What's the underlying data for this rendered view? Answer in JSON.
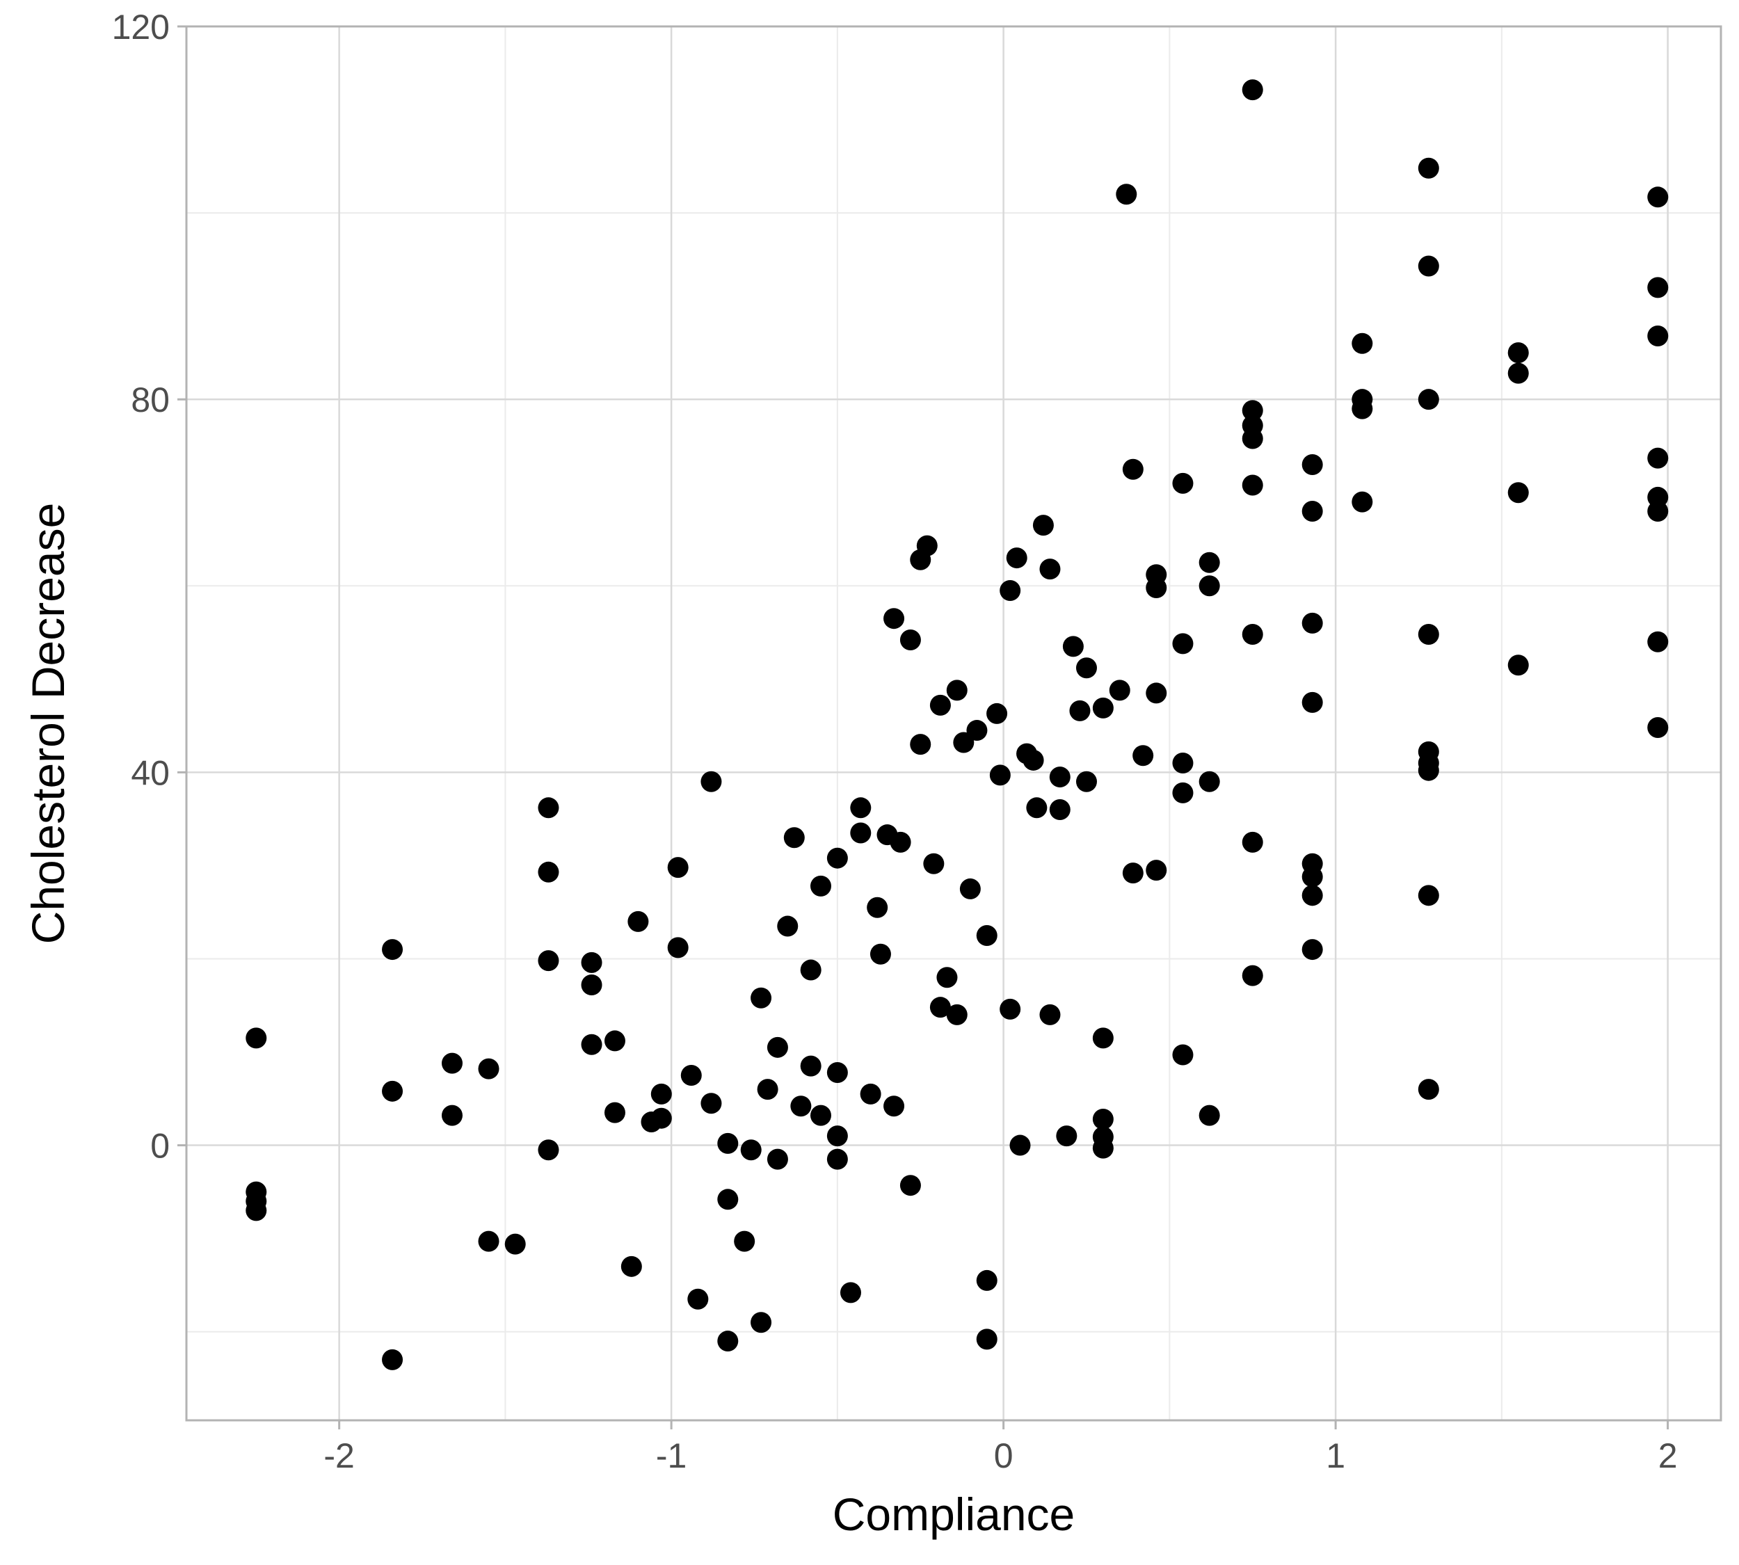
{
  "chart_data": {
    "type": "scatter",
    "title": "",
    "xlabel": "Compliance",
    "ylabel": "Cholesterol Decrease",
    "xlim": [
      -2.46,
      2.16
    ],
    "ylim": [
      -29.5,
      120
    ],
    "x_ticks": [
      -2,
      -1,
      0,
      1,
      2
    ],
    "x_tick_labels": [
      "-2",
      "-1",
      "0",
      "1",
      "2"
    ],
    "y_ticks": [
      0,
      40,
      80,
      120
    ],
    "y_tick_labels": [
      "0",
      "40",
      "80",
      "120"
    ],
    "grid": true,
    "legend": "none",
    "colors": {
      "points": "#000000",
      "grid_major": "#d9d9d9",
      "grid_minor": "#ebebeb",
      "panel_border": "#b3b3b3"
    },
    "points": [
      {
        "x": -2.25,
        "y": 11.5
      },
      {
        "x": -2.25,
        "y": -5.0
      },
      {
        "x": -2.25,
        "y": -6.0
      },
      {
        "x": -2.25,
        "y": -7.0
      },
      {
        "x": -1.84,
        "y": 21.0
      },
      {
        "x": -1.84,
        "y": 5.8
      },
      {
        "x": -1.84,
        "y": -23.0
      },
      {
        "x": -1.66,
        "y": 8.8
      },
      {
        "x": -1.66,
        "y": 3.2
      },
      {
        "x": -1.55,
        "y": 8.2
      },
      {
        "x": -1.55,
        "y": -10.3
      },
      {
        "x": -1.47,
        "y": -10.6
      },
      {
        "x": -1.37,
        "y": 36.2
      },
      {
        "x": -1.37,
        "y": 29.3
      },
      {
        "x": -1.37,
        "y": 19.8
      },
      {
        "x": -1.37,
        "y": -0.5
      },
      {
        "x": -1.24,
        "y": 19.6
      },
      {
        "x": -1.24,
        "y": 17.2
      },
      {
        "x": -1.24,
        "y": 10.8
      },
      {
        "x": -1.17,
        "y": 11.2
      },
      {
        "x": -1.17,
        "y": 3.5
      },
      {
        "x": -1.12,
        "y": -13.0
      },
      {
        "x": -1.1,
        "y": 24.0
      },
      {
        "x": -1.06,
        "y": 2.5
      },
      {
        "x": -1.03,
        "y": 5.5
      },
      {
        "x": -1.03,
        "y": 2.9
      },
      {
        "x": -0.98,
        "y": 29.8
      },
      {
        "x": -0.98,
        "y": 21.2
      },
      {
        "x": -0.94,
        "y": 7.5
      },
      {
        "x": -0.92,
        "y": -16.5
      },
      {
        "x": -0.88,
        "y": 39.0
      },
      {
        "x": -0.88,
        "y": 4.5
      },
      {
        "x": -0.83,
        "y": 0.2
      },
      {
        "x": -0.83,
        "y": -5.8
      },
      {
        "x": -0.83,
        "y": -21.0
      },
      {
        "x": -0.78,
        "y": -10.3
      },
      {
        "x": -0.76,
        "y": -0.5
      },
      {
        "x": -0.73,
        "y": 15.8
      },
      {
        "x": -0.73,
        "y": -19.0
      },
      {
        "x": -0.71,
        "y": 6.0
      },
      {
        "x": -0.68,
        "y": 10.5
      },
      {
        "x": -0.68,
        "y": -1.5
      },
      {
        "x": -0.65,
        "y": 23.5
      },
      {
        "x": -0.63,
        "y": 33.0
      },
      {
        "x": -0.61,
        "y": 4.2
      },
      {
        "x": -0.58,
        "y": 18.8
      },
      {
        "x": -0.58,
        "y": 8.5
      },
      {
        "x": -0.55,
        "y": 27.8
      },
      {
        "x": -0.55,
        "y": 3.2
      },
      {
        "x": -0.5,
        "y": 30.8
      },
      {
        "x": -0.5,
        "y": 7.8
      },
      {
        "x": -0.5,
        "y": 1.0
      },
      {
        "x": -0.5,
        "y": -1.5
      },
      {
        "x": -0.46,
        "y": -15.8
      },
      {
        "x": -0.43,
        "y": 36.2
      },
      {
        "x": -0.43,
        "y": 33.5
      },
      {
        "x": -0.4,
        "y": 5.5
      },
      {
        "x": -0.38,
        "y": 25.5
      },
      {
        "x": -0.37,
        "y": 20.5
      },
      {
        "x": -0.35,
        "y": 33.3
      },
      {
        "x": -0.33,
        "y": 56.5
      },
      {
        "x": -0.33,
        "y": 4.2
      },
      {
        "x": -0.31,
        "y": 32.5
      },
      {
        "x": -0.28,
        "y": 54.2
      },
      {
        "x": -0.28,
        "y": -4.3
      },
      {
        "x": -0.25,
        "y": 62.8
      },
      {
        "x": -0.25,
        "y": 43.0
      },
      {
        "x": -0.23,
        "y": 64.3
      },
      {
        "x": -0.21,
        "y": 30.2
      },
      {
        "x": -0.19,
        "y": 47.2
      },
      {
        "x": -0.19,
        "y": 14.8
      },
      {
        "x": -0.17,
        "y": 18.0
      },
      {
        "x": -0.14,
        "y": 48.8
      },
      {
        "x": -0.14,
        "y": 14.0
      },
      {
        "x": -0.12,
        "y": 43.2
      },
      {
        "x": -0.1,
        "y": 27.5
      },
      {
        "x": -0.08,
        "y": 44.5
      },
      {
        "x": -0.05,
        "y": 22.5
      },
      {
        "x": -0.05,
        "y": -14.5
      },
      {
        "x": -0.05,
        "y": -20.8
      },
      {
        "x": -0.02,
        "y": 46.3
      },
      {
        "x": -0.01,
        "y": 39.7
      },
      {
        "x": 0.02,
        "y": 59.5
      },
      {
        "x": 0.02,
        "y": 14.6
      },
      {
        "x": 0.04,
        "y": 63.0
      },
      {
        "x": 0.05,
        "y": 0.0
      },
      {
        "x": 0.07,
        "y": 42.0
      },
      {
        "x": 0.09,
        "y": 41.3
      },
      {
        "x": 0.1,
        "y": 36.2
      },
      {
        "x": 0.12,
        "y": 66.5
      },
      {
        "x": 0.14,
        "y": 61.8
      },
      {
        "x": 0.14,
        "y": 14.0
      },
      {
        "x": 0.17,
        "y": 39.5
      },
      {
        "x": 0.17,
        "y": 36.0
      },
      {
        "x": 0.19,
        "y": 1.0
      },
      {
        "x": 0.21,
        "y": 53.5
      },
      {
        "x": 0.23,
        "y": 46.6
      },
      {
        "x": 0.25,
        "y": 51.2
      },
      {
        "x": 0.25,
        "y": 39.0
      },
      {
        "x": 0.3,
        "y": 46.9
      },
      {
        "x": 0.3,
        "y": 11.5
      },
      {
        "x": 0.3,
        "y": 2.8
      },
      {
        "x": 0.3,
        "y": 0.9
      },
      {
        "x": 0.3,
        "y": -0.3
      },
      {
        "x": 0.35,
        "y": 48.8
      },
      {
        "x": 0.37,
        "y": 102.0
      },
      {
        "x": 0.39,
        "y": 72.5
      },
      {
        "x": 0.39,
        "y": 29.2
      },
      {
        "x": 0.42,
        "y": 41.8
      },
      {
        "x": 0.46,
        "y": 61.2
      },
      {
        "x": 0.46,
        "y": 59.8
      },
      {
        "x": 0.46,
        "y": 48.5
      },
      {
        "x": 0.46,
        "y": 29.5
      },
      {
        "x": 0.54,
        "y": 71.0
      },
      {
        "x": 0.54,
        "y": 53.8
      },
      {
        "x": 0.54,
        "y": 41.0
      },
      {
        "x": 0.54,
        "y": 37.8
      },
      {
        "x": 0.54,
        "y": 9.7
      },
      {
        "x": 0.62,
        "y": 62.5
      },
      {
        "x": 0.62,
        "y": 60.0
      },
      {
        "x": 0.62,
        "y": 39.0
      },
      {
        "x": 0.62,
        "y": 3.2
      },
      {
        "x": 0.75,
        "y": 113.2
      },
      {
        "x": 0.75,
        "y": 78.8
      },
      {
        "x": 0.75,
        "y": 77.2
      },
      {
        "x": 0.75,
        "y": 75.8
      },
      {
        "x": 0.75,
        "y": 70.8
      },
      {
        "x": 0.75,
        "y": 54.8
      },
      {
        "x": 0.75,
        "y": 32.5
      },
      {
        "x": 0.75,
        "y": 18.2
      },
      {
        "x": 0.93,
        "y": 73.0
      },
      {
        "x": 0.93,
        "y": 68.0
      },
      {
        "x": 0.93,
        "y": 56.0
      },
      {
        "x": 0.93,
        "y": 47.5
      },
      {
        "x": 0.93,
        "y": 30.2
      },
      {
        "x": 0.93,
        "y": 28.8
      },
      {
        "x": 0.93,
        "y": 26.8
      },
      {
        "x": 0.93,
        "y": 21.0
      },
      {
        "x": 1.08,
        "y": 86.0
      },
      {
        "x": 1.08,
        "y": 80.0
      },
      {
        "x": 1.08,
        "y": 79.0
      },
      {
        "x": 1.08,
        "y": 69.0
      },
      {
        "x": 1.28,
        "y": 104.8
      },
      {
        "x": 1.28,
        "y": 94.3
      },
      {
        "x": 1.28,
        "y": 80.0
      },
      {
        "x": 1.28,
        "y": 54.8
      },
      {
        "x": 1.28,
        "y": 42.2
      },
      {
        "x": 1.28,
        "y": 41.0
      },
      {
        "x": 1.28,
        "y": 40.2
      },
      {
        "x": 1.28,
        "y": 26.8
      },
      {
        "x": 1.28,
        "y": 6.0
      },
      {
        "x": 1.55,
        "y": 85.0
      },
      {
        "x": 1.55,
        "y": 82.8
      },
      {
        "x": 1.55,
        "y": 70.0
      },
      {
        "x": 1.55,
        "y": 51.5
      },
      {
        "x": 1.97,
        "y": 101.7
      },
      {
        "x": 1.97,
        "y": 92.0
      },
      {
        "x": 1.97,
        "y": 86.8
      },
      {
        "x": 1.97,
        "y": 73.7
      },
      {
        "x": 1.97,
        "y": 69.5
      },
      {
        "x": 1.97,
        "y": 68.0
      },
      {
        "x": 1.97,
        "y": 54.0
      },
      {
        "x": 1.97,
        "y": 44.8
      }
    ]
  }
}
